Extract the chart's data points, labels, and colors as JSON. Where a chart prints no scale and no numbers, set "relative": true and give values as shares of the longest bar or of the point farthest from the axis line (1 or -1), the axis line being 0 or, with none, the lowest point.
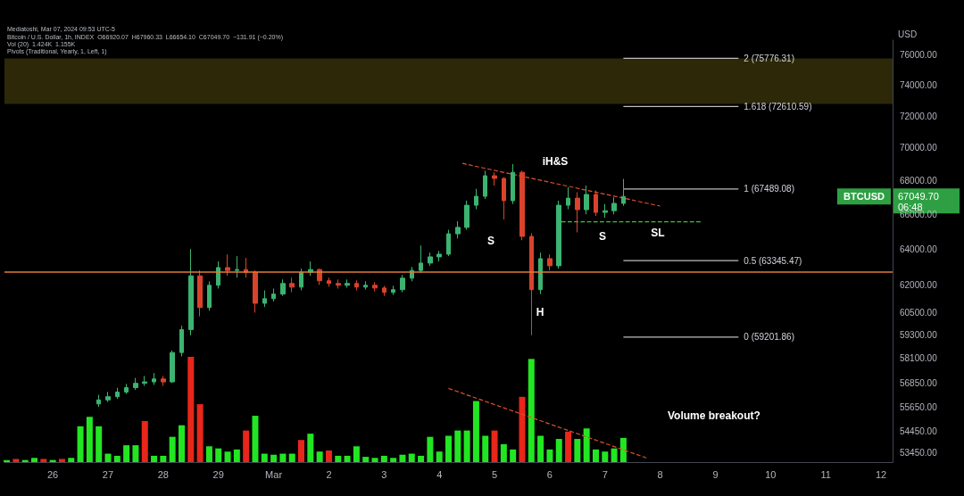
{
  "chart_data": [
    {
      "type": "candlestick",
      "title": "Bitcoin / U.S. Dollar, 1h, INDEX  O66920.07  H67960.33  L66654.10  C67049.70  −131.91 (−0.20%)",
      "ylabel": "USD",
      "annotations": [
        "Mediatoshi, Mar 07, 2024 09:53 UTC-5",
        "Pivots (Traditional, Yearly, 1, Left, 1)",
        "iH&S",
        "S",
        "H",
        "S",
        "SL",
        "BTCUSD",
        "67049.70",
        "06:48"
      ],
      "x": [
        "2024-02-26T20:00",
        "2024-02-27T00:00",
        "2024-02-27T04:00",
        "2024-02-27T08:00",
        "2024-02-27T12:00",
        "2024-02-27T16:00",
        "2024-02-27T20:00",
        "2024-02-28T00:00",
        "2024-02-28T04:00",
        "2024-02-28T08:00",
        "2024-02-28T12:00",
        "2024-02-28T16:00",
        "2024-02-28T20:00",
        "2024-02-29T00:00",
        "2024-02-29T04:00",
        "2024-02-29T08:00",
        "2024-02-29T12:00",
        "2024-02-29T16:00",
        "2024-02-29T20:00",
        "2024-03-01T00:00",
        "2024-03-01T04:00",
        "2024-03-01T08:00",
        "2024-03-01T12:00",
        "2024-03-01T16:00",
        "2024-03-01T20:00",
        "2024-03-02T00:00",
        "2024-03-02T04:00",
        "2024-03-02T08:00",
        "2024-03-02T12:00",
        "2024-03-02T16:00",
        "2024-03-02T20:00",
        "2024-03-03T00:00",
        "2024-03-03T04:00",
        "2024-03-03T08:00",
        "2024-03-03T12:00",
        "2024-03-03T16:00",
        "2024-03-03T20:00",
        "2024-03-04T00:00",
        "2024-03-04T04:00",
        "2024-03-04T08:00",
        "2024-03-04T12:00",
        "2024-03-04T16:00",
        "2024-03-04T20:00",
        "2024-03-05T00:00",
        "2024-03-05T04:00",
        "2024-03-05T08:00",
        "2024-03-05T12:00",
        "2024-03-05T16:00",
        "2024-03-05T20:00",
        "2024-03-06T00:00",
        "2024-03-06T04:00",
        "2024-03-06T08:00",
        "2024-03-06T12:00",
        "2024-03-06T16:00",
        "2024-03-06T20:00",
        "2024-03-07T00:00",
        "2024-03-07T04:00",
        "2024-03-07T08:00"
      ],
      "ohlc": [
        [
          55800,
          56250,
          55650,
          56000
        ],
        [
          56000,
          56400,
          55900,
          56160
        ],
        [
          56160,
          56600,
          56050,
          56390
        ],
        [
          56390,
          56800,
          56300,
          56610
        ],
        [
          56610,
          57100,
          56500,
          56830
        ],
        [
          56830,
          57200,
          56700,
          56900
        ],
        [
          56900,
          57350,
          56750,
          57050
        ],
        [
          57050,
          57200,
          56700,
          56900
        ],
        [
          56900,
          58500,
          56850,
          58400
        ],
        [
          58400,
          59800,
          58200,
          59600
        ],
        [
          59600,
          64000,
          59300,
          62500
        ],
        [
          62500,
          62800,
          60300,
          60770
        ],
        [
          60770,
          62200,
          60600,
          61980
        ],
        [
          61980,
          63300,
          61800,
          62960
        ],
        [
          62960,
          63700,
          62500,
          62800
        ],
        [
          62800,
          63600,
          62400,
          62850
        ],
        [
          62850,
          63500,
          62400,
          62700
        ],
        [
          62700,
          62800,
          60500,
          61000
        ],
        [
          61000,
          61700,
          60800,
          61250
        ],
        [
          61250,
          61800,
          61100,
          61500
        ],
        [
          61500,
          62300,
          61400,
          62080
        ],
        [
          62080,
          62400,
          61600,
          61880
        ],
        [
          61880,
          62900,
          61700,
          62700
        ],
        [
          62700,
          63300,
          62500,
          62850
        ],
        [
          62850,
          62900,
          62000,
          62230
        ],
        [
          62230,
          62400,
          61900,
          62080
        ],
        [
          62080,
          62300,
          61800,
          61980
        ],
        [
          61980,
          62300,
          61850,
          62080
        ],
        [
          62080,
          62250,
          61700,
          61880
        ],
        [
          61880,
          62200,
          61750,
          61980
        ],
        [
          61980,
          62150,
          61650,
          61830
        ],
        [
          61830,
          61950,
          61400,
          61590
        ],
        [
          61590,
          61950,
          61450,
          61740
        ],
        [
          61740,
          62550,
          61600,
          62370
        ],
        [
          62370,
          63000,
          62200,
          62800
        ],
        [
          62800,
          64200,
          62650,
          63210
        ],
        [
          63210,
          63800,
          63050,
          63560
        ],
        [
          63560,
          63900,
          63300,
          63710
        ],
        [
          63710,
          65100,
          63600,
          64870
        ],
        [
          64870,
          65600,
          64600,
          65240
        ],
        [
          65240,
          66800,
          65100,
          66530
        ],
        [
          66530,
          67500,
          66300,
          67060
        ],
        [
          67060,
          68600,
          66900,
          68290
        ],
        [
          68290,
          68500,
          67700,
          68130
        ],
        [
          68130,
          68200,
          65700,
          66800
        ],
        [
          66800,
          69000,
          66600,
          68500
        ],
        [
          68500,
          68600,
          64500,
          64720
        ],
        [
          64720,
          64900,
          59300,
          61740
        ],
        [
          61740,
          63800,
          61500,
          63460
        ],
        [
          63460,
          63700,
          62800,
          63060
        ],
        [
          63060,
          66800,
          62900,
          66530
        ],
        [
          66530,
          67600,
          66300,
          66950
        ],
        [
          66950,
          67300,
          64950,
          66270
        ],
        [
          66270,
          67700,
          66000,
          67170
        ],
        [
          67170,
          67400,
          65900,
          66110
        ],
        [
          66110,
          66600,
          65800,
          66210
        ],
        [
          66210,
          67000,
          66000,
          66640
        ],
        [
          66640,
          68100,
          66500,
          67049.7
        ]
      ],
      "colors": [
        "#3cb371",
        "#3cb371",
        "#3cb371",
        "#3cb371",
        "#3cb371",
        "#3cb371",
        "#3cb371",
        "#d9432b",
        "#3cb371",
        "#3cb371",
        "#3cb371",
        "#d9432b",
        "#3cb371",
        "#3cb371",
        "#d9432b",
        "#3cb371",
        "#d9432b",
        "#d9432b",
        "#3cb371",
        "#3cb371",
        "#3cb371",
        "#d9432b",
        "#3cb371",
        "#3cb371",
        "#d9432b",
        "#d9432b",
        "#d9432b",
        "#3cb371",
        "#d9432b",
        "#3cb371",
        "#d9432b",
        "#d9432b",
        "#3cb371",
        "#3cb371",
        "#3cb371",
        "#3cb371",
        "#3cb371",
        "#3cb371",
        "#3cb371",
        "#3cb371",
        "#3cb371",
        "#3cb371",
        "#3cb371",
        "#d9432b",
        "#d9432b",
        "#3cb371",
        "#d9432b",
        "#d9432b",
        "#3cb371",
        "#d9432b",
        "#3cb371",
        "#3cb371",
        "#d9432b",
        "#3cb371",
        "#d9432b",
        "#3cb371",
        "#3cb371",
        "#3cb371"
      ],
      "series": [
        {
          "type": "line",
          "x": [
            "2024-03-04T10:00",
            "2024-03-08T00:00"
          ],
          "values": [
            69040,
            66480
          ],
          "color": "#e0502f",
          "line_style": "dashed"
        },
        {
          "type": "line",
          "x": [
            "2024-03-06T05:00",
            "2024-03-08T18:00"
          ],
          "values": [
            65560,
            65560
          ],
          "color": "#3fbf3f",
          "line_style": "dashed"
        },
        {
          "type": "line",
          "name": "2 (75776.31)",
          "x": [
            "2024-03-07T08:00",
            "2024-03-09T10:00"
          ],
          "values": [
            75776.31,
            75776.31
          ],
          "color": "#bdbdbd",
          "line_style": "solid"
        },
        {
          "type": "line",
          "name": "1.618 (72610.59)",
          "x": [
            "2024-03-07T08:00",
            "2024-03-09T10:00"
          ],
          "values": [
            72610.59,
            72610.59
          ],
          "color": "#bdbdbd",
          "line_style": "solid"
        },
        {
          "type": "line",
          "name": "1 (67489.08)",
          "x": [
            "2024-03-07T08:00",
            "2024-03-09T10:00"
          ],
          "values": [
            67489.08,
            67489.08
          ],
          "color": "#bdbdbd",
          "line_style": "solid"
        },
        {
          "type": "line",
          "name": "0.5 (63345.47)",
          "x": [
            "2024-03-07T08:00",
            "2024-03-09T10:00"
          ],
          "values": [
            63345.47,
            63345.47
          ],
          "color": "#bdbdbd",
          "line_style": "solid"
        },
        {
          "type": "line",
          "name": "0 (59201.86)",
          "x": [
            "2024-03-07T08:00",
            "2024-03-09T10:00"
          ],
          "values": [
            59201.86,
            59201.86
          ],
          "color": "#bdbdbd",
          "line_style": "solid"
        }
      ],
      "ref_lines": [
        {
          "axis": "y",
          "value": 62720,
          "color": "#e07b39"
        }
      ],
      "bands": [
        {
          "axis": "y",
          "from": 72780,
          "to": 75760,
          "color": "#2c2808"
        }
      ],
      "xlim": [
        "2024-02-25T03:00",
        "2024-03-12T05:00"
      ],
      "ylim": [
        53000,
        77000
      ],
      "yticks": [
        {
          "value": 76000,
          "label": "76000.00"
        },
        {
          "value": 74000,
          "label": "74000.00"
        },
        {
          "value": 72000,
          "label": "72000.00"
        },
        {
          "value": 70000,
          "label": "70000.00"
        },
        {
          "value": 68000,
          "label": "68000.00"
        },
        {
          "value": 66000,
          "label": "66000.00"
        },
        {
          "value": 64000,
          "label": "64000.00"
        },
        {
          "value": 62000,
          "label": "62000.00"
        },
        {
          "value": 60500,
          "label": "60500.00"
        },
        {
          "value": 59300,
          "label": "59300.00"
        },
        {
          "value": 58100,
          "label": "58100.00"
        },
        {
          "value": 56850,
          "label": "56850.00"
        },
        {
          "value": 55650,
          "label": "55650.00"
        },
        {
          "value": 54450,
          "label": "54450.00"
        },
        {
          "value": 53450,
          "label": "53450.00"
        }
      ],
      "log": "y",
      "grid": false,
      "tick_labels": "y",
      "marker": "none"
    },
    {
      "type": "bar",
      "title": "Vol (20)  1.424K  1.155K",
      "relative": true,
      "annotations": [
        "Volume breakout?"
      ],
      "series": [
        {
          "x": [
            "2024-02-25T04:00",
            "2024-02-25T08:00",
            "2024-02-25T12:00",
            "2024-02-25T16:00",
            "2024-02-25T20:00",
            "2024-02-26T00:00",
            "2024-02-26T04:00",
            "2024-02-26T08:00",
            "2024-02-26T12:00",
            "2024-02-26T16:00",
            "2024-02-26T20:00",
            "2024-02-27T00:00",
            "2024-02-27T04:00",
            "2024-02-27T08:00",
            "2024-02-27T12:00",
            "2024-02-27T16:00",
            "2024-02-27T20:00",
            "2024-02-28T00:00",
            "2024-02-28T04:00",
            "2024-02-28T08:00",
            "2024-02-28T12:00",
            "2024-02-28T16:00",
            "2024-02-28T20:00",
            "2024-02-29T00:00",
            "2024-02-29T04:00",
            "2024-02-29T08:00",
            "2024-02-29T12:00",
            "2024-02-29T16:00",
            "2024-02-29T20:00",
            "2024-03-01T00:00",
            "2024-03-01T04:00",
            "2024-03-01T08:00",
            "2024-03-01T12:00",
            "2024-03-01T16:00",
            "2024-03-01T20:00",
            "2024-03-02T00:00",
            "2024-03-02T04:00",
            "2024-03-02T08:00",
            "2024-03-02T12:00",
            "2024-03-02T16:00",
            "2024-03-02T20:00",
            "2024-03-03T00:00",
            "2024-03-03T04:00",
            "2024-03-03T08:00",
            "2024-03-03T12:00",
            "2024-03-03T16:00",
            "2024-03-03T20:00",
            "2024-03-04T00:00",
            "2024-03-04T04:00",
            "2024-03-04T08:00",
            "2024-03-04T12:00",
            "2024-03-04T16:00",
            "2024-03-04T20:00",
            "2024-03-05T00:00",
            "2024-03-05T04:00",
            "2024-03-05T08:00",
            "2024-03-05T12:00",
            "2024-03-05T16:00",
            "2024-03-05T20:00",
            "2024-03-06T00:00",
            "2024-03-06T04:00",
            "2024-03-06T08:00",
            "2024-03-06T12:00",
            "2024-03-06T16:00",
            "2024-03-06T20:00",
            "2024-03-07T00:00",
            "2024-03-07T04:00",
            "2024-03-07T08:00"
          ],
          "values": [
            0.02,
            0.03,
            0.02,
            0.04,
            0.03,
            0.02,
            0.03,
            0.04,
            0.34,
            0.43,
            0.34,
            0.08,
            0.06,
            0.16,
            0.16,
            0.39,
            0.06,
            0.06,
            0.24,
            0.35,
            1,
            0.55,
            0.15,
            0.13,
            0.1,
            0.12,
            0.3,
            0.44,
            0.08,
            0.07,
            0.08,
            0.08,
            0.21,
            0.27,
            0.1,
            0.11,
            0.06,
            0.06,
            0.15,
            0.05,
            0.04,
            0.06,
            0.04,
            0.07,
            0.08,
            0.06,
            0.24,
            0.1,
            0.25,
            0.3,
            0.3,
            0.58,
            0.25,
            0.3,
            0.17,
            0.12,
            0.62,
            0.98,
            0.25,
            0.12,
            0.22,
            0.29,
            0.22,
            0.32,
            0.12,
            0.1,
            0.13,
            0.23
          ],
          "colors": [
            "#22e622",
            "#e8261a",
            "#22e622",
            "#22e622",
            "#e8261a",
            "#22e622",
            "#e8261a",
            "#22e622",
            "#22e622",
            "#22e622",
            "#22e622",
            "#22e622",
            "#22e622",
            "#22e622",
            "#22e622",
            "#e8261a",
            "#22e622",
            "#22e622",
            "#22e622",
            "#22e622",
            "#e8261a",
            "#e8261a",
            "#22e622",
            "#22e622",
            "#22e622",
            "#22e622",
            "#e8261a",
            "#22e622",
            "#22e622",
            "#22e622",
            "#22e622",
            "#22e622",
            "#e8261a",
            "#22e622",
            "#22e622",
            "#e8261a",
            "#22e622",
            "#22e622",
            "#22e622",
            "#22e622",
            "#22e622",
            "#22e622",
            "#22e622",
            "#22e622",
            "#22e622",
            "#22e622",
            "#22e622",
            "#22e622",
            "#22e622",
            "#22e622",
            "#22e622",
            "#22e622",
            "#22e622",
            "#e8261a",
            "#22e622",
            "#22e622",
            "#e8261a",
            "#22e622",
            "#22e622",
            "#22e622",
            "#22e622",
            "#e8261a",
            "#22e622",
            "#22e622",
            "#22e622",
            "#22e622",
            "#22e622",
            "#22e622"
          ]
        },
        {
          "type": "line",
          "x": [
            "2024-03-04T04:00",
            "2024-03-07T18:00"
          ],
          "values": [
            0.7,
            0.04
          ],
          "color": "#e0502f",
          "line_style": "dashed"
        }
      ],
      "xlim": [
        "2024-02-25T03:00",
        "2024-03-12T05:00"
      ],
      "xticks": [
        {
          "value": "2024-02-26",
          "label": "26"
        },
        {
          "value": "2024-02-27",
          "label": "27"
        },
        {
          "value": "2024-02-28",
          "label": "28"
        },
        {
          "value": "2024-02-29",
          "label": "29"
        },
        {
          "value": "2024-03-01",
          "label": "Mar"
        },
        {
          "value": "2024-03-02",
          "label": "2"
        },
        {
          "value": "2024-03-03",
          "label": "3"
        },
        {
          "value": "2024-03-04",
          "label": "4"
        },
        {
          "value": "2024-03-05",
          "label": "5"
        },
        {
          "value": "2024-03-06",
          "label": "6"
        },
        {
          "value": "2024-03-07",
          "label": "7"
        },
        {
          "value": "2024-03-08",
          "label": "8"
        },
        {
          "value": "2024-03-09",
          "label": "9"
        },
        {
          "value": "2024-03-10",
          "label": "10"
        },
        {
          "value": "2024-03-11",
          "label": "11"
        },
        {
          "value": "2024-03-12",
          "label": "12"
        }
      ],
      "grid": false,
      "tick_labels": "x",
      "marker": "none"
    }
  ]
}
